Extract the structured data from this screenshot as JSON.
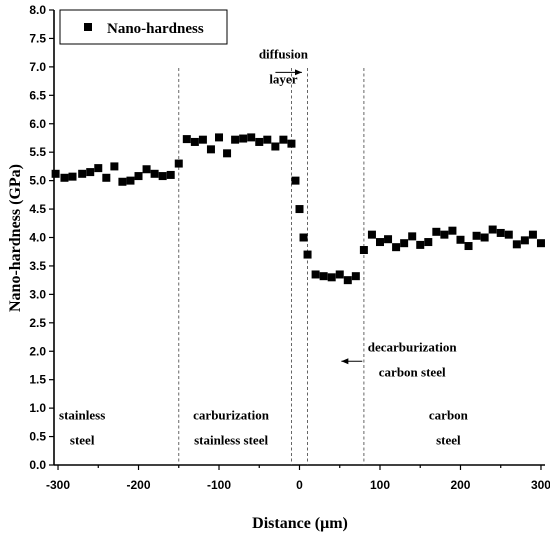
{
  "chart_data": {
    "type": "scatter",
    "xlabel": "Distance (μm)",
    "ylabel": "Nano-hardness (GPa)",
    "xlim": [
      -305,
      305
    ],
    "ylim": [
      0,
      8.0
    ],
    "xticks": [
      -300,
      -200,
      -100,
      0,
      100,
      200,
      300
    ],
    "yticks": [
      0.0,
      0.5,
      1.0,
      1.5,
      2.0,
      2.5,
      3.0,
      3.5,
      4.0,
      4.5,
      5.0,
      5.5,
      6.0,
      6.5,
      7.0,
      7.5,
      8.0
    ],
    "legend": {
      "position": "top-left",
      "label": "Nano-hardness",
      "marker": "square"
    },
    "grid": false,
    "series": [
      {
        "name": "Nano-hardness",
        "marker": "square",
        "color": "#000000",
        "x": [
          -303,
          -292,
          -282,
          -270,
          -260,
          -250,
          -240,
          -230,
          -220,
          -210,
          -200,
          -190,
          -180,
          -170,
          -160,
          -150,
          -140,
          -130,
          -120,
          -110,
          -100,
          -90,
          -80,
          -70,
          -60,
          -50,
          -40,
          -30,
          -20,
          -10,
          -5,
          0,
          5,
          10,
          20,
          30,
          40,
          50,
          60,
          70,
          80,
          90,
          100,
          110,
          120,
          130,
          140,
          150,
          160,
          170,
          180,
          190,
          200,
          210,
          220,
          230,
          240,
          250,
          260,
          270,
          280,
          290,
          300
        ],
        "y": [
          5.12,
          5.05,
          5.07,
          5.12,
          5.15,
          5.22,
          5.05,
          5.25,
          4.98,
          5.0,
          5.08,
          5.2,
          5.12,
          5.08,
          5.1,
          5.3,
          5.73,
          5.68,
          5.72,
          5.55,
          5.76,
          5.48,
          5.72,
          5.74,
          5.76,
          5.68,
          5.72,
          5.6,
          5.72,
          5.65,
          5.0,
          4.5,
          4.0,
          3.7,
          3.35,
          3.32,
          3.3,
          3.35,
          3.25,
          3.32,
          3.78,
          4.05,
          3.92,
          3.97,
          3.83,
          3.9,
          4.02,
          3.87,
          3.92,
          4.1,
          4.05,
          4.12,
          3.96,
          3.85,
          4.03,
          4.0,
          4.14,
          4.08,
          4.05,
          3.88,
          3.95,
          4.05,
          3.9
        ]
      }
    ],
    "dividers_x": [
      -150,
      -10,
      10,
      80
    ],
    "annotations": [
      {
        "id": "diffusion",
        "lines": [
          "diffusion",
          "layer"
        ],
        "x": -20,
        "y": 7.15,
        "arrow": "right"
      },
      {
        "id": "decarb",
        "lines": [
          "decarburization",
          "carbon steel"
        ],
        "x": 140,
        "y": 2.0,
        "arrow": "left"
      },
      {
        "id": "stainless",
        "lines": [
          "stainless",
          "steel"
        ],
        "x": -270,
        "y": 0.8
      },
      {
        "id": "carb_stainless",
        "lines": [
          "carburization",
          "stainless steel"
        ],
        "x": -85,
        "y": 0.8
      },
      {
        "id": "carbon",
        "lines": [
          "carbon",
          "steel"
        ],
        "x": 185,
        "y": 0.8
      }
    ]
  }
}
